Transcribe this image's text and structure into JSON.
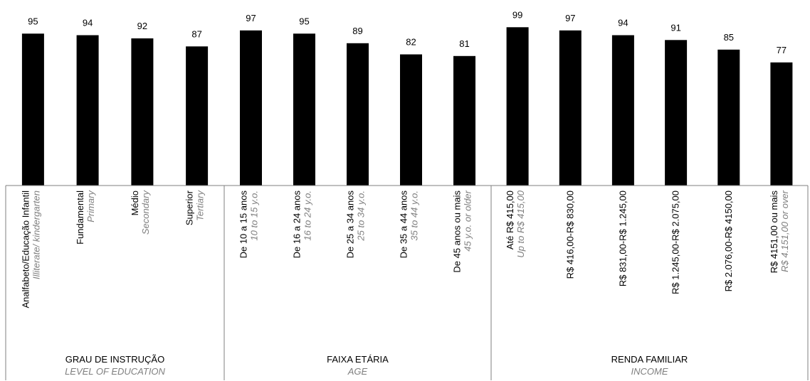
{
  "chart_data": {
    "type": "bar",
    "title": "",
    "xlabel": "",
    "ylabel": "",
    "ylim": [
      0,
      100
    ],
    "grid": false,
    "legend": "none",
    "bar_color": "#000000",
    "groups": [
      {
        "title": "GRAU DE INSTRUÇÃO",
        "subtitle": "LEVEL OF EDUCATION",
        "categories": [
          {
            "pt": "Analfabeto/Educação Infantil",
            "en": "Illiterate/ kindergarten",
            "value": 95
          },
          {
            "pt": "Fundamental",
            "en": "Primary",
            "value": 94
          },
          {
            "pt": "Médio",
            "en": "Secondary",
            "value": 92
          },
          {
            "pt": "Superior",
            "en": "Tertiary",
            "value": 87
          }
        ]
      },
      {
        "title": "FAIXA ETÁRIA",
        "subtitle": "AGE",
        "categories": [
          {
            "pt": "De 10 a 15 anos",
            "en": "10 to 15 y.o.",
            "value": 97
          },
          {
            "pt": "De 16 a 24 anos",
            "en": "16 to 24 y.o.",
            "value": 95
          },
          {
            "pt": "De 25 a 34 anos",
            "en": "25 to 34 y.o.",
            "value": 89
          },
          {
            "pt": "De 35 a 44 anos",
            "en": "35 to 44 y.o.",
            "value": 82
          },
          {
            "pt": "De 45 anos ou mais",
            "en": "45 y.o. or older",
            "value": 81
          }
        ]
      },
      {
        "title": "RENDA FAMILIAR",
        "subtitle": "INCOME",
        "categories": [
          {
            "pt": "Até R$ 415,00",
            "en": "Up to R$ 415,00",
            "value": 99
          },
          {
            "pt": "R$ 416,00-R$ 830,00",
            "en": "",
            "value": 97
          },
          {
            "pt": "R$ 831,00-R$ 1.245,00",
            "en": "",
            "value": 94
          },
          {
            "pt": "R$ 1.245,00-R$ 2.075,00",
            "en": "",
            "value": 91
          },
          {
            "pt": "R$ 2.076,00-R$ 4150,00",
            "en": "",
            "value": 85
          },
          {
            "pt": "R$ 4151,00 ou mais",
            "en": "R$ 4.151,00 or over",
            "value": 77
          }
        ]
      }
    ]
  }
}
